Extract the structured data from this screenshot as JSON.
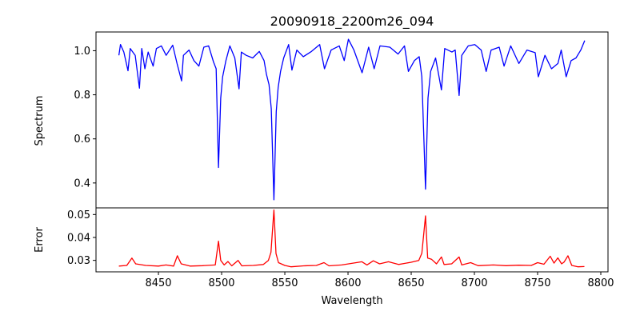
{
  "chart_data": [
    {
      "type": "line",
      "panel": "top",
      "title": "20090918_2200m26_094",
      "xlabel": "",
      "ylabel": "Spectrum",
      "xlim": [
        8400.6,
        8805.7
      ],
      "ylim": [
        0.287,
        1.085
      ],
      "yticks": [
        0.4,
        0.6,
        0.8,
        1.0
      ],
      "ytick_labels": [
        "0.4",
        "0.6",
        "0.8",
        "1.0"
      ],
      "grid": false,
      "series": [
        {
          "name": "spectrum",
          "color": "#0000ff",
          "x": [
            8418.7,
            8420,
            8422.6,
            8425.9,
            8427.7,
            8431.6,
            8435,
            8436.8,
            8439.3,
            8441.9,
            8445.8,
            8448.4,
            8452.3,
            8456.1,
            8461.3,
            8464.7,
            8468.3,
            8469.8,
            8474.2,
            8478.1,
            8482,
            8485.9,
            8489.7,
            8493.6,
            8495.7,
            8497.5,
            8499.3,
            8500.8,
            8503.4,
            8506.5,
            8510.4,
            8513.8,
            8515.6,
            8519.4,
            8524.6,
            8529.8,
            8533.6,
            8535.4,
            8537.5,
            8539.3,
            8541.4,
            8543.2,
            8544.7,
            8546.6,
            8549.1,
            8553,
            8555.6,
            8559.5,
            8564.6,
            8571.1,
            8577.6,
            8581.4,
            8586.6,
            8593.1,
            8597,
            8600.3,
            8604.7,
            8611.1,
            8616.3,
            8620.7,
            8625.3,
            8633.1,
            8639.6,
            8644.7,
            8647.8,
            8652.5,
            8656.3,
            8658.4,
            8661.3,
            8663.3,
            8665.4,
            8669.3,
            8673.9,
            8676.5,
            8682.2,
            8684.8,
            8687.9,
            8690,
            8695.1,
            8700.3,
            8705.4,
            8709.3,
            8713.2,
            8719.6,
            8723.5,
            8728.7,
            8735.2,
            8741.6,
            8748.1,
            8750.6,
            8755.8,
            8761,
            8766.1,
            8768.7,
            8772.6,
            8776.5,
            8780.4,
            8784.2,
            8787.3
          ],
          "y": [
            0.979,
            1.028,
            0.994,
            0.909,
            1.01,
            0.979,
            0.83,
            1.01,
            0.918,
            0.994,
            0.93,
            1.01,
            1.022,
            0.979,
            1.025,
            0.942,
            0.863,
            0.979,
            1.003,
            0.955,
            0.93,
            1.016,
            1.022,
            0.949,
            0.918,
            0.47,
            0.785,
            0.882,
            0.955,
            1.022,
            0.967,
            0.827,
            0.994,
            0.979,
            0.967,
            0.997,
            0.955,
            0.894,
            0.846,
            0.736,
            0.324,
            0.724,
            0.833,
            0.906,
            0.967,
            1.028,
            0.912,
            1.003,
            0.973,
            0.997,
            1.028,
            0.918,
            1.003,
            1.022,
            0.955,
            1.052,
            1.003,
            0.9,
            1.016,
            0.918,
            1.022,
            1.016,
            0.985,
            1.022,
            0.906,
            0.955,
            0.973,
            0.882,
            0.372,
            0.785,
            0.906,
            0.967,
            0.822,
            1.01,
            0.994,
            1.003,
            0.797,
            0.979,
            1.022,
            1.028,
            1.003,
            0.906,
            1.003,
            1.016,
            0.93,
            1.022,
            0.942,
            1.003,
            0.991,
            0.882,
            0.979,
            0.918,
            0.942,
            1.003,
            0.882,
            0.955,
            0.967,
            1.003,
            1.046
          ]
        }
      ]
    },
    {
      "type": "line",
      "panel": "bottom",
      "xlabel": "Wavelength",
      "ylabel": "Error",
      "xlim": [
        8400.6,
        8805.7
      ],
      "ylim": [
        0.025,
        0.0529
      ],
      "xticks": [
        8450,
        8500,
        8550,
        8600,
        8650,
        8700,
        8750,
        8800
      ],
      "xtick_labels": [
        "8450",
        "8500",
        "8550",
        "8600",
        "8650",
        "8700",
        "8750",
        "8800"
      ],
      "yticks": [
        0.03,
        0.04,
        0.05
      ],
      "ytick_labels": [
        "0.03",
        "0.04",
        "0.05"
      ],
      "grid": false,
      "series": [
        {
          "name": "error",
          "color": "#ff0000",
          "x": [
            8418.7,
            8425,
            8429,
            8432,
            8440,
            8450,
            8456,
            8462,
            8465,
            8468,
            8475,
            8485,
            8495,
            8497.5,
            8499.3,
            8502,
            8505,
            8508,
            8513,
            8516,
            8525,
            8533,
            8537,
            8539,
            8541.4,
            8543,
            8545,
            8550,
            8555,
            8565,
            8575,
            8581,
            8585,
            8595,
            8611,
            8615,
            8620,
            8625,
            8632,
            8640,
            8650,
            8656,
            8658.4,
            8661.3,
            8663,
            8666,
            8670,
            8673.9,
            8676,
            8682,
            8687.9,
            8690,
            8697,
            8703,
            8715,
            8725,
            8735,
            8745,
            8750,
            8755,
            8760,
            8763,
            8766,
            8769,
            8771,
            8774,
            8777,
            8782,
            8787
          ],
          "y": [
            0.0275,
            0.0278,
            0.031,
            0.0285,
            0.0278,
            0.0275,
            0.028,
            0.0275,
            0.032,
            0.0285,
            0.0275,
            0.0277,
            0.028,
            0.0384,
            0.03,
            0.028,
            0.0295,
            0.0276,
            0.03,
            0.0276,
            0.0278,
            0.0282,
            0.03,
            0.0335,
            0.052,
            0.033,
            0.029,
            0.0278,
            0.0272,
            0.0276,
            0.0278,
            0.029,
            0.0276,
            0.028,
            0.0294,
            0.028,
            0.0298,
            0.0285,
            0.0294,
            0.0282,
            0.0292,
            0.03,
            0.0331,
            0.0494,
            0.031,
            0.0305,
            0.0285,
            0.0315,
            0.0282,
            0.0285,
            0.0315,
            0.028,
            0.029,
            0.0277,
            0.028,
            0.0277,
            0.0279,
            0.0278,
            0.029,
            0.0283,
            0.0318,
            0.0288,
            0.0311,
            0.0285,
            0.0293,
            0.032,
            0.0278,
            0.0272,
            0.0273
          ]
        }
      ]
    }
  ]
}
